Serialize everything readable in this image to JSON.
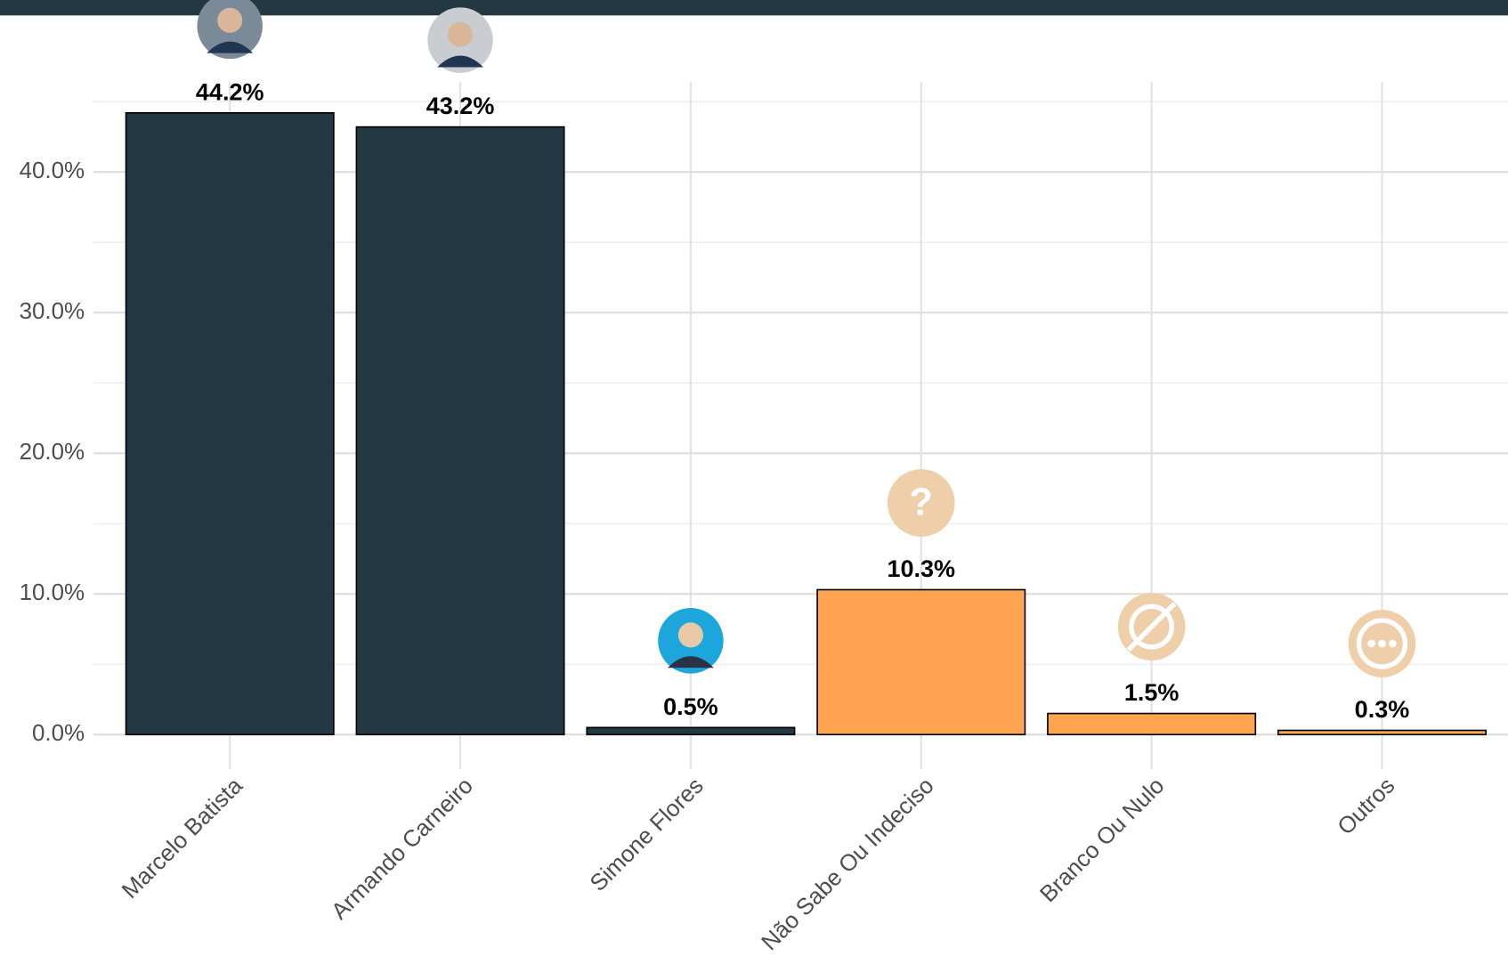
{
  "chart_data": {
    "type": "bar",
    "categories": [
      "Marcelo Batista",
      "Armando Carneiro",
      "Simone Flores",
      "Não Sabe Ou Indeciso",
      "Branco Ou Nulo",
      "Outros"
    ],
    "values": [
      44.2,
      43.2,
      0.5,
      10.3,
      1.5,
      0.3
    ],
    "value_labels": [
      "44.2%",
      "43.2%",
      "0.5%",
      "10.3%",
      "1.5%",
      "0.3%"
    ],
    "colors": [
      "#223843",
      "#223843",
      "#223843",
      "#FFA552",
      "#FFA552",
      "#FFA552"
    ],
    "ylim": [
      0,
      46.4
    ],
    "yticks": [
      {
        "value": 0,
        "label": "0.0%"
      },
      {
        "value": 10,
        "label": "10.0%"
      },
      {
        "value": 20,
        "label": "20.0%"
      },
      {
        "value": 30,
        "label": "30.0%"
      },
      {
        "value": 40,
        "label": "40.0%"
      }
    ],
    "minor_yticks": [
      5,
      15,
      25,
      35,
      45
    ],
    "grid": true
  }
}
